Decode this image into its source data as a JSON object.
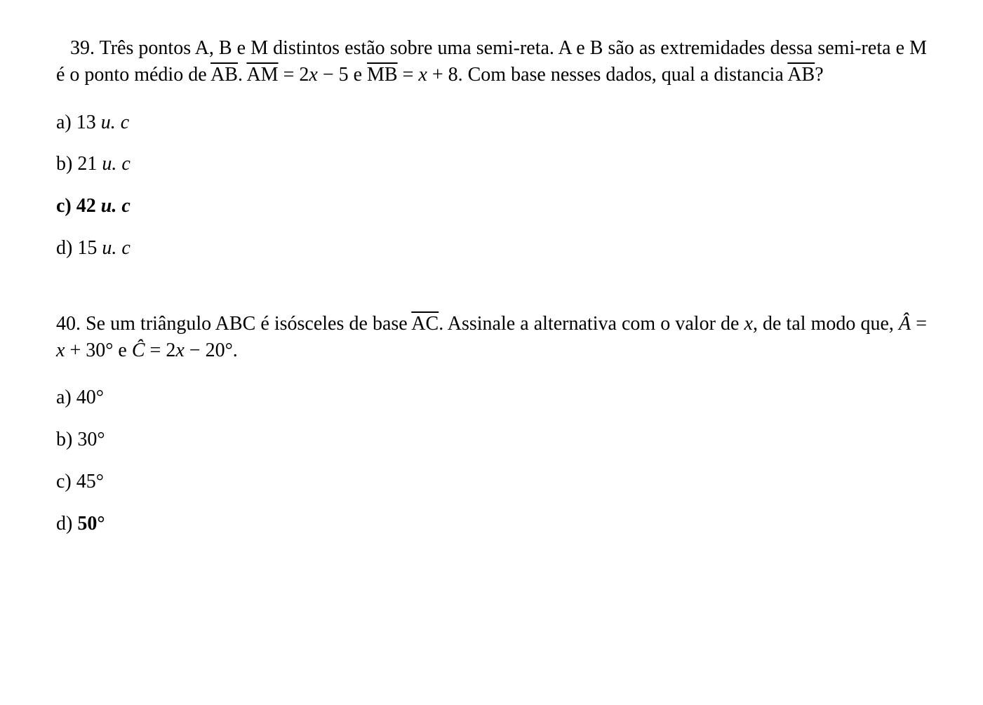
{
  "q39": {
    "number": "39.",
    "stem_part1": "Três pontos A, B e M distintos estão sobre uma semi-reta. A e B são as extremidades dessa semi-reta e M é o ponto médio de ",
    "seg_ab1": "AB",
    "stem_part2": ". ",
    "seg_am": "AM",
    "stem_part3": " = 2",
    "var_x1": "x",
    "stem_part4": " − 5 e ",
    "seg_mb": "MB",
    "stem_part5": " = ",
    "var_x2": "x",
    "stem_part6": " + 8. Com base nesses dados, qual a distancia ",
    "seg_ab2": "AB",
    "stem_part7": "?",
    "options": {
      "a_label": "a) 13 ",
      "a_unit": "u. c",
      "b_label": "b) 21 ",
      "b_unit": "u. c",
      "c_label": "c) 42 ",
      "c_unit": "u. c",
      "d_label": "d) 15 ",
      "d_unit": "u. c"
    }
  },
  "q40": {
    "number": "40.",
    "stem_part1": "Se um triângulo ABC é isósceles de base ",
    "seg_ac": "AC",
    "stem_part2": ". Assinale a alternativa com o valor de ",
    "var_x1": "x",
    "stem_part3": ", de tal modo que, ",
    "ang_a": "Â",
    "stem_part4": " = ",
    "var_x2": "x",
    "stem_part5": " + 30° e ",
    "ang_c": "Ĉ",
    "stem_part6": " = 2",
    "var_x3": "x",
    "stem_part7": " − 20°.",
    "options": {
      "a": "a) 40°",
      "b": "b) 30°",
      "c": "c) 45°",
      "d_label": "d) ",
      "d_value": "50°"
    }
  }
}
